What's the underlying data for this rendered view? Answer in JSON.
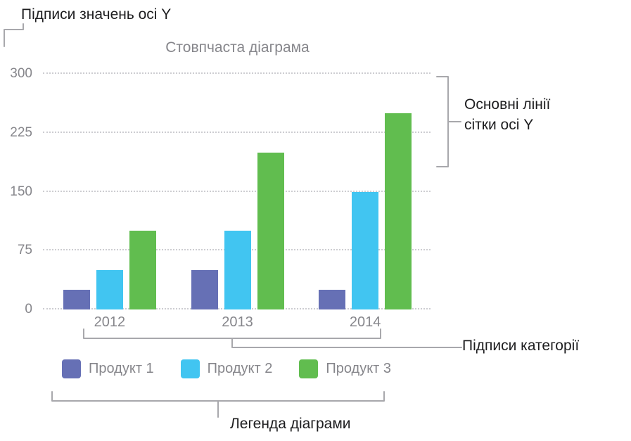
{
  "annotations": {
    "y_value_labels": "Підписи значень осі Y",
    "y_gridlines_line1": "Основні лінії",
    "y_gridlines_line2": "сітки осі Y",
    "category_labels": "Підписи категорії",
    "chart_legend": "Легенда діаграми"
  },
  "colors": {
    "axis_text": "#86868b",
    "annotation_text": "#1d1d1f",
    "bracket": "#a8a8ac",
    "gridline": "#cdcdd1"
  },
  "chart_data": {
    "type": "bar",
    "title": "Стовпчаста діаграма",
    "categories": [
      "2012",
      "2013",
      "2014"
    ],
    "series": [
      {
        "name": "Продукт 1",
        "color": "#6670b5",
        "values": [
          25,
          50,
          25
        ]
      },
      {
        "name": "Продукт 2",
        "color": "#41c5f1",
        "values": [
          50,
          100,
          150
        ]
      },
      {
        "name": "Продукт 3",
        "color": "#61bd4f",
        "values": [
          100,
          200,
          250
        ]
      }
    ],
    "y_ticks": [
      0,
      75,
      150,
      225,
      300
    ],
    "ylim": [
      0,
      300
    ],
    "xlabel": "",
    "ylabel": "",
    "grid": "horizontal-dotted",
    "legend_position": "bottom"
  }
}
